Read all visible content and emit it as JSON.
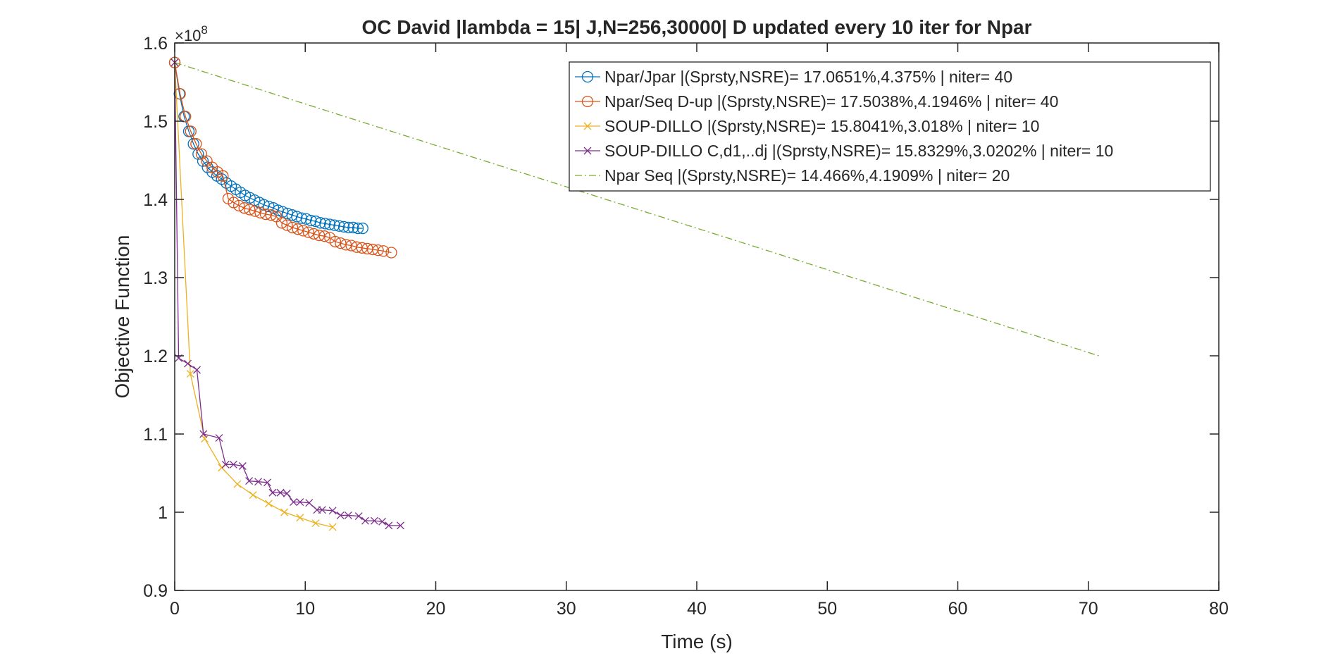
{
  "chart_data": {
    "type": "line",
    "title": "OC David |lambda = 15| J,N=256,30000| D updated every 10 iter for Npar",
    "xlabel": "Time (s)",
    "ylabel": "Objective Function",
    "y_multiplier_label": "×10",
    "y_multiplier_exponent": "8",
    "xlim": [
      0,
      80
    ],
    "ylim": [
      0.9,
      1.6
    ],
    "xticks": [
      0,
      10,
      20,
      30,
      40,
      50,
      60,
      70,
      80
    ],
    "xtick_labels": [
      "0",
      "10",
      "20",
      "30",
      "40",
      "50",
      "60",
      "70",
      "80"
    ],
    "yticks": [
      0.9,
      1.0,
      1.1,
      1.2,
      1.3,
      1.4,
      1.5,
      1.6
    ],
    "ytick_labels": [
      "0.9",
      "1",
      "1.1",
      "1.2",
      "1.3",
      "1.4",
      "1.5",
      "1.6"
    ],
    "grid": false,
    "legend_position": "top-right",
    "series": [
      {
        "name": "Npar/Jpar |(Sprsty,NSRE)= 17.0651%,4.375% | niter= 40",
        "color": "#0072BD",
        "marker": "circle",
        "line_style": "solid",
        "x": [
          0,
          0.36,
          0.72,
          1.08,
          1.44,
          1.8,
          2.16,
          2.52,
          2.88,
          3.24,
          3.6,
          3.96,
          4.32,
          4.68,
          5.04,
          5.4,
          5.76,
          6.12,
          6.48,
          6.84,
          7.2,
          7.56,
          7.92,
          8.28,
          8.64,
          9.0,
          9.36,
          9.72,
          10.08,
          10.44,
          10.8,
          11.16,
          11.52,
          11.88,
          12.24,
          12.6,
          12.96,
          13.32,
          13.68,
          14.04,
          14.4
        ],
        "y": [
          1.575,
          1.535,
          1.506,
          1.487,
          1.471,
          1.458,
          1.449,
          1.441,
          1.435,
          1.43,
          1.426,
          1.421,
          1.417,
          1.413,
          1.409,
          1.405,
          1.402,
          1.399,
          1.396,
          1.393,
          1.391,
          1.389,
          1.386,
          1.384,
          1.382,
          1.38,
          1.378,
          1.376,
          1.375,
          1.373,
          1.372,
          1.37,
          1.369,
          1.368,
          1.367,
          1.366,
          1.365,
          1.364,
          1.364,
          1.363,
          1.363
        ]
      },
      {
        "name": "Npar/Seq D-up |(Sprsty,NSRE)= 17.5038%,4.1946% | niter= 40",
        "color": "#D95319",
        "marker": "circle",
        "line_style": "solid",
        "x": [
          0,
          0.41,
          0.82,
          1.23,
          1.64,
          2.05,
          2.46,
          2.87,
          3.28,
          3.69,
          4.1,
          4.51,
          4.92,
          5.33,
          5.74,
          6.15,
          6.56,
          6.97,
          7.38,
          7.79,
          8.2,
          8.61,
          9.02,
          9.43,
          9.84,
          10.25,
          10.66,
          11.07,
          11.48,
          11.89,
          12.3,
          12.71,
          13.12,
          13.53,
          13.94,
          14.35,
          14.76,
          15.17,
          15.58,
          15.99,
          16.6
        ],
        "y": [
          1.575,
          1.535,
          1.506,
          1.487,
          1.471,
          1.458,
          1.449,
          1.441,
          1.435,
          1.43,
          1.401,
          1.396,
          1.392,
          1.389,
          1.387,
          1.385,
          1.383,
          1.381,
          1.38,
          1.378,
          1.37,
          1.367,
          1.364,
          1.362,
          1.36,
          1.358,
          1.356,
          1.354,
          1.353,
          1.351,
          1.346,
          1.344,
          1.342,
          1.341,
          1.339,
          1.338,
          1.337,
          1.336,
          1.335,
          1.334,
          1.332
        ]
      },
      {
        "name": "SOUP-DILLO |(Sprsty,NSRE)= 15.8041%,3.018% | niter= 10",
        "color": "#EDB120",
        "marker": "x",
        "line_style": "solid",
        "x": [
          0,
          1.2,
          2.3,
          3.6,
          4.8,
          6.0,
          7.2,
          8.4,
          9.6,
          10.8,
          12.1
        ],
        "y": [
          1.575,
          1.177,
          1.094,
          1.057,
          1.036,
          1.022,
          1.011,
          1.0,
          0.993,
          0.986,
          0.981
        ]
      },
      {
        "name": "SOUP-DILLO C,d1,..dj |(Sprsty,NSRE)= 15.8329%,3.0202% | niter= 10",
        "color": "#7E2F8E",
        "marker": "x",
        "line_style": "solid",
        "x": [
          0,
          0.3,
          1.0,
          1.7,
          2.2,
          3.4,
          3.9,
          4.5,
          5.2,
          5.7,
          6.4,
          7.1,
          7.5,
          8.1,
          8.6,
          9.1,
          9.6,
          10.3,
          10.9,
          11.3,
          12.1,
          12.7,
          13.3,
          14.1,
          14.6,
          15.3,
          15.9,
          16.4,
          17.3
        ],
        "y": [
          1.575,
          1.197,
          1.19,
          1.182,
          1.1,
          1.095,
          1.061,
          1.061,
          1.059,
          1.04,
          1.039,
          1.038,
          1.025,
          1.025,
          1.024,
          1.013,
          1.013,
          1.012,
          1.003,
          1.003,
          1.002,
          0.996,
          0.996,
          0.995,
          0.989,
          0.989,
          0.988,
          0.983,
          0.983
        ]
      },
      {
        "name": "Npar Seq |(Sprsty,NSRE)= 14.466%,4.1909% | niter= 20",
        "color": "#77AC30",
        "marker": "none",
        "line_style": "dashdot",
        "x": [
          0,
          71
        ],
        "y": [
          1.575,
          1.199
        ]
      }
    ]
  }
}
